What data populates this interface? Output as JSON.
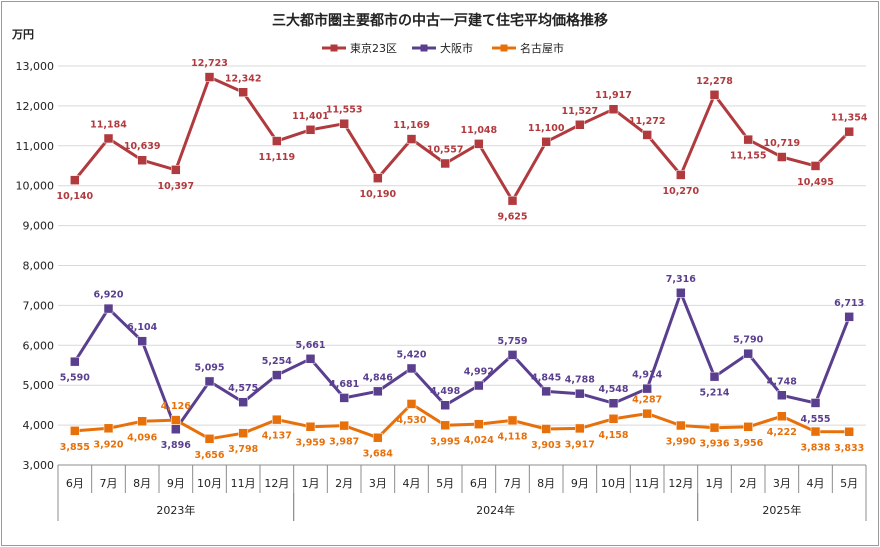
{
  "chart_data": {
    "type": "line",
    "title": "三大都市圏主要都市の中古一戸建て住宅平均価格推移",
    "ylabel": "万円",
    "xlabel": "",
    "ylim": [
      3000,
      13000
    ],
    "yticks": [
      3000,
      4000,
      5000,
      6000,
      7000,
      8000,
      9000,
      10000,
      11000,
      12000,
      13000
    ],
    "ytick_labels": [
      "3,000",
      "4,000",
      "5,000",
      "6,000",
      "7,000",
      "8,000",
      "9,000",
      "10,000",
      "11,000",
      "12,000",
      "13,000"
    ],
    "grid": "horizontal",
    "legend_position": "top-center",
    "categories": [
      "6月",
      "7月",
      "8月",
      "9月",
      "10月",
      "11月",
      "12月",
      "1月",
      "2月",
      "3月",
      "4月",
      "5月",
      "6月",
      "7月",
      "8月",
      "9月",
      "10月",
      "11月",
      "12月",
      "1月",
      "2月",
      "3月",
      "4月",
      "5月"
    ],
    "year_groups": [
      {
        "label": "2023年",
        "start": 0,
        "end": 6
      },
      {
        "label": "2024年",
        "start": 7,
        "end": 18
      },
      {
        "label": "2025年",
        "start": 19,
        "end": 23
      }
    ],
    "series": [
      {
        "name": "東京23区",
        "color": "#b03a3e",
        "marker": "square",
        "values": [
          10140,
          11184,
          10639,
          10397,
          12723,
          12342,
          11119,
          11401,
          11553,
          10190,
          11169,
          10557,
          11048,
          9625,
          11100,
          11527,
          11917,
          11272,
          10270,
          12278,
          11155,
          10719,
          10495,
          11354
        ],
        "labels": [
          "10,140",
          "11,184",
          "10,639",
          "10,397",
          "12,723",
          "12,342",
          "11,119",
          "11,401",
          "11,553",
          "10,190",
          "11,169",
          "10,557",
          "11,048",
          "9,625",
          "11,100",
          "11,527",
          "11,917",
          "11,272",
          "10,270",
          "12,278",
          "11,155",
          "10,719",
          "10,495",
          "11,354"
        ],
        "label_pos": [
          "b",
          "a",
          "a",
          "b",
          "a",
          "a",
          "b",
          "a",
          "a",
          "b",
          "a",
          "a",
          "a",
          "b",
          "a",
          "a",
          "a",
          "a",
          "b",
          "a",
          "b",
          "a",
          "b",
          "a"
        ]
      },
      {
        "name": "大阪市",
        "color": "#5b3f8f",
        "marker": "square",
        "values": [
          5590,
          6920,
          6104,
          3896,
          5095,
          4575,
          5254,
          5661,
          4681,
          4846,
          5420,
          4498,
          4992,
          5759,
          4845,
          4788,
          4548,
          4914,
          7316,
          5214,
          5790,
          4748,
          4555,
          6713
        ],
        "labels": [
          "5,590",
          "6,920",
          "6,104",
          "3,896",
          "5,095",
          "4,575",
          "5,254",
          "5,661",
          "4,681",
          "4,846",
          "5,420",
          "4,498",
          "4,992",
          "5,759",
          "4,845",
          "4,788",
          "4,548",
          "4,914",
          "7,316",
          "5,214",
          "5,790",
          "4,748",
          "4,555",
          "6,713"
        ],
        "label_pos": [
          "b",
          "a",
          "a",
          "b",
          "a",
          "a",
          "a",
          "a",
          "a",
          "a",
          "a",
          "a",
          "a",
          "a",
          "a",
          "a",
          "a",
          "a",
          "a",
          "b",
          "a",
          "a",
          "b",
          "a"
        ]
      },
      {
        "name": "名古屋市",
        "color": "#e8700a",
        "marker": "square",
        "values": [
          3855,
          3920,
          4096,
          4126,
          3656,
          3798,
          4137,
          3959,
          3987,
          3684,
          4530,
          3995,
          4024,
          4118,
          3903,
          3917,
          4158,
          4287,
          3990,
          3936,
          3956,
          4222,
          3838,
          3833
        ],
        "labels": [
          "3,855",
          "3,920",
          "4,096",
          "4,126",
          "3,656",
          "3,798",
          "4,137",
          "3,959",
          "3,987",
          "3,684",
          "4,530",
          "3,995",
          "4,024",
          "4,118",
          "3,903",
          "3,917",
          "4,158",
          "4,287",
          "3,990",
          "3,936",
          "3,956",
          "4,222",
          "3,838",
          "3,833"
        ],
        "label_pos": [
          "b",
          "b",
          "b",
          "a",
          "b",
          "b",
          "b",
          "b",
          "b",
          "b",
          "b",
          "b",
          "b",
          "b",
          "b",
          "b",
          "b",
          "a",
          "b",
          "b",
          "b",
          "b",
          "b",
          "b"
        ]
      }
    ]
  }
}
